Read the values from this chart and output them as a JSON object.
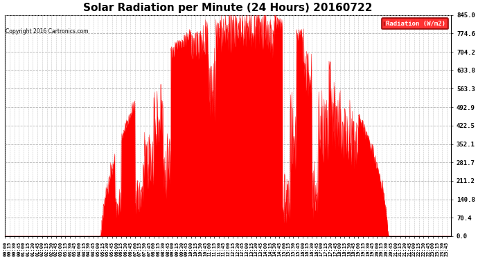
{
  "title": "Solar Radiation per Minute (24 Hours) 20160722",
  "copyright_text": "Copyright 2016 Cartronics.com",
  "legend_label": "Radiation (W/m2)",
  "ytick_labels": [
    "0.0",
    "70.4",
    "140.8",
    "211.2",
    "281.7",
    "352.1",
    "422.5",
    "492.9",
    "563.3",
    "633.8",
    "704.2",
    "774.6",
    "845.0"
  ],
  "ytick_values": [
    0.0,
    70.4,
    140.8,
    211.2,
    281.7,
    352.1,
    422.5,
    492.9,
    563.3,
    633.8,
    704.2,
    774.6,
    845.0
  ],
  "ymax": 845.0,
  "ymin": 0.0,
  "fill_color": "#FF0000",
  "line_color": "#FF0000",
  "background_color": "#FFFFFF",
  "grid_color": "#AAAAAA",
  "title_fontsize": 11,
  "axis_bg_color": "#FFFFFF",
  "xtick_step_minutes": 15,
  "total_minutes": 1440,
  "sunrise_minute": 310,
  "sunset_minute": 1235
}
